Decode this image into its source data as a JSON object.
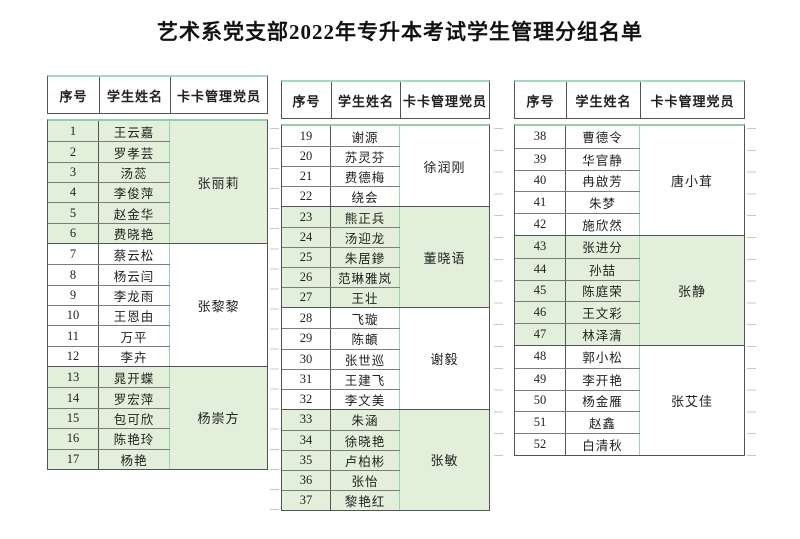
{
  "title": "艺术系党支部2022年专升本考试学生管理分组名单",
  "columns": [
    "序号",
    "学生姓名",
    "卡卡管理党员"
  ],
  "colors": {
    "group_fill_green": "#e2efda",
    "accent_border_green": "#9fd3ae",
    "grid_border_dark": "#545454",
    "text": "#1f1f1f"
  },
  "tables": [
    {
      "groups": [
        {
          "shaded": true,
          "manager": "张丽莉",
          "students": [
            {
              "no": "1",
              "name": "王云嘉"
            },
            {
              "no": "2",
              "name": "罗孝芸"
            },
            {
              "no": "3",
              "name": "汤蕊"
            },
            {
              "no": "4",
              "name": "李俊萍"
            },
            {
              "no": "5",
              "name": "赵金华"
            },
            {
              "no": "6",
              "name": "费晓艳"
            }
          ]
        },
        {
          "shaded": false,
          "manager": "张黎黎",
          "students": [
            {
              "no": "7",
              "name": "蔡云松"
            },
            {
              "no": "8",
              "name": "杨云闫"
            },
            {
              "no": "9",
              "name": "李龙雨"
            },
            {
              "no": "10",
              "name": "王恩由"
            },
            {
              "no": "11",
              "name": "万平"
            },
            {
              "no": "12",
              "name": "李卉"
            }
          ]
        },
        {
          "shaded": true,
          "manager": "杨崇方",
          "students": [
            {
              "no": "13",
              "name": "晁开蝶"
            },
            {
              "no": "14",
              "name": "罗宏萍"
            },
            {
              "no": "15",
              "name": "包可欣"
            },
            {
              "no": "16",
              "name": "陈艳玲"
            },
            {
              "no": "17",
              "name": "杨艳"
            }
          ]
        }
      ]
    },
    {
      "groups": [
        {
          "shaded": false,
          "manager": "徐润刚",
          "students": [
            {
              "no": "19",
              "name": "谢源"
            },
            {
              "no": "20",
              "name": "苏灵芬"
            },
            {
              "no": "21",
              "name": "费德梅"
            },
            {
              "no": "22",
              "name": "绕会"
            }
          ]
        },
        {
          "shaded": true,
          "manager": "董晓语",
          "students": [
            {
              "no": "23",
              "name": "熊正兵"
            },
            {
              "no": "24",
              "name": "汤迎龙"
            },
            {
              "no": "25",
              "name": "朱居鏒"
            },
            {
              "no": "26",
              "name": "范琳雅岚"
            },
            {
              "no": "27",
              "name": "王壮"
            }
          ]
        },
        {
          "shaded": false,
          "manager": "谢毅",
          "students": [
            {
              "no": "28",
              "name": "飞璇"
            },
            {
              "no": "29",
              "name": "陈頔"
            },
            {
              "no": "30",
              "name": "张世巡"
            },
            {
              "no": "31",
              "name": "王建飞"
            },
            {
              "no": "32",
              "name": "李文美"
            }
          ]
        },
        {
          "shaded": true,
          "manager": "张敏",
          "students": [
            {
              "no": "33",
              "name": "朱涵"
            },
            {
              "no": "34",
              "name": "徐晓艳"
            },
            {
              "no": "35",
              "name": "卢柏彬"
            },
            {
              "no": "36",
              "name": "张怡"
            },
            {
              "no": "37",
              "name": "黎艳红"
            }
          ]
        }
      ]
    },
    {
      "groups": [
        {
          "shaded": false,
          "manager": "唐小茸",
          "students": [
            {
              "no": "38",
              "name": "曹德令"
            },
            {
              "no": "39",
              "name": "华官静"
            },
            {
              "no": "40",
              "name": "冉啟芳"
            },
            {
              "no": "41",
              "name": "朱梦"
            },
            {
              "no": "42",
              "name": "施欣然"
            }
          ]
        },
        {
          "shaded": true,
          "manager": "张静",
          "students": [
            {
              "no": "43",
              "name": "张进分"
            },
            {
              "no": "44",
              "name": "孙喆"
            },
            {
              "no": "45",
              "name": "陈庭荣"
            },
            {
              "no": "46",
              "name": "王文彩"
            },
            {
              "no": "47",
              "name": "林泽清"
            }
          ]
        },
        {
          "shaded": false,
          "manager": "张艾佳",
          "students": [
            {
              "no": "48",
              "name": "郭小松"
            },
            {
              "no": "49",
              "name": "李开艳"
            },
            {
              "no": "50",
              "name": "杨金雁"
            },
            {
              "no": "51",
              "name": "赵鑫"
            },
            {
              "no": "52",
              "name": "白清秋"
            }
          ]
        }
      ]
    }
  ]
}
